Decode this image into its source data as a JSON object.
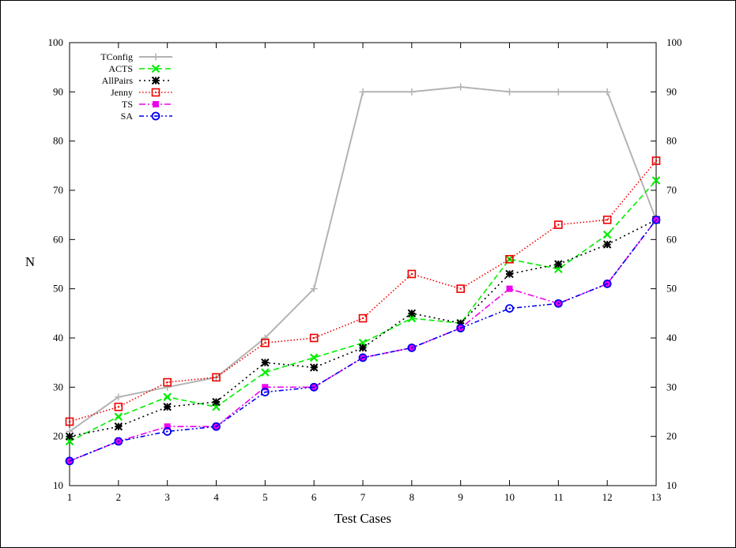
{
  "chart_data": {
    "type": "line",
    "xlabel": "Test Cases",
    "ylabel": "N",
    "x": [
      1,
      2,
      3,
      4,
      5,
      6,
      7,
      8,
      9,
      10,
      11,
      12,
      13
    ],
    "x_ticks": [
      "1",
      "2",
      "3",
      "4",
      "5",
      "6",
      "7",
      "8",
      "9",
      "10",
      "11",
      "12",
      "13"
    ],
    "xlim": [
      1,
      13
    ],
    "ylim": [
      10,
      100
    ],
    "y_ticks": [
      "10",
      "20",
      "30",
      "40",
      "50",
      "60",
      "70",
      "80",
      "90",
      "100"
    ],
    "y_ticks_right": [
      "10",
      "20",
      "30",
      "40",
      "50",
      "60",
      "70",
      "80",
      "90",
      "100"
    ],
    "legend_position": "top-left",
    "grid": false,
    "series": [
      {
        "name": "TConfig",
        "color": "#b3b3b3",
        "marker": "plus",
        "dash": "solid",
        "values": [
          21,
          28,
          30,
          32,
          40,
          50,
          90,
          90,
          91,
          90,
          90,
          90,
          64
        ]
      },
      {
        "name": "ACTS",
        "color": "#00ee00",
        "marker": "cross",
        "dash": "dashed",
        "values": [
          19,
          24,
          28,
          26,
          33,
          36,
          39,
          44,
          43,
          56,
          54,
          61,
          72
        ]
      },
      {
        "name": "AllPairs",
        "color": "#000000",
        "marker": "star",
        "dash": "dotted",
        "values": [
          20,
          22,
          26,
          27,
          35,
          34,
          38,
          45,
          43,
          53,
          55,
          59,
          64
        ]
      },
      {
        "name": "Jenny",
        "color": "#ee0000",
        "marker": "square",
        "dash": "fine-dotted",
        "values": [
          23,
          26,
          31,
          32,
          39,
          40,
          44,
          53,
          50,
          56,
          63,
          64,
          76
        ]
      },
      {
        "name": "TS",
        "color": "#ee00ee",
        "marker": "filled-square",
        "dash": "dash-dot",
        "values": [
          15,
          19,
          22,
          22,
          30,
          30,
          36,
          38,
          42,
          50,
          47,
          51,
          64
        ]
      },
      {
        "name": "SA",
        "color": "#0000ee",
        "marker": "circle",
        "dash": "dash-dot-dot",
        "values": [
          15,
          19,
          21,
          22,
          29,
          30,
          36,
          38,
          42,
          46,
          47,
          51,
          64
        ]
      }
    ]
  }
}
